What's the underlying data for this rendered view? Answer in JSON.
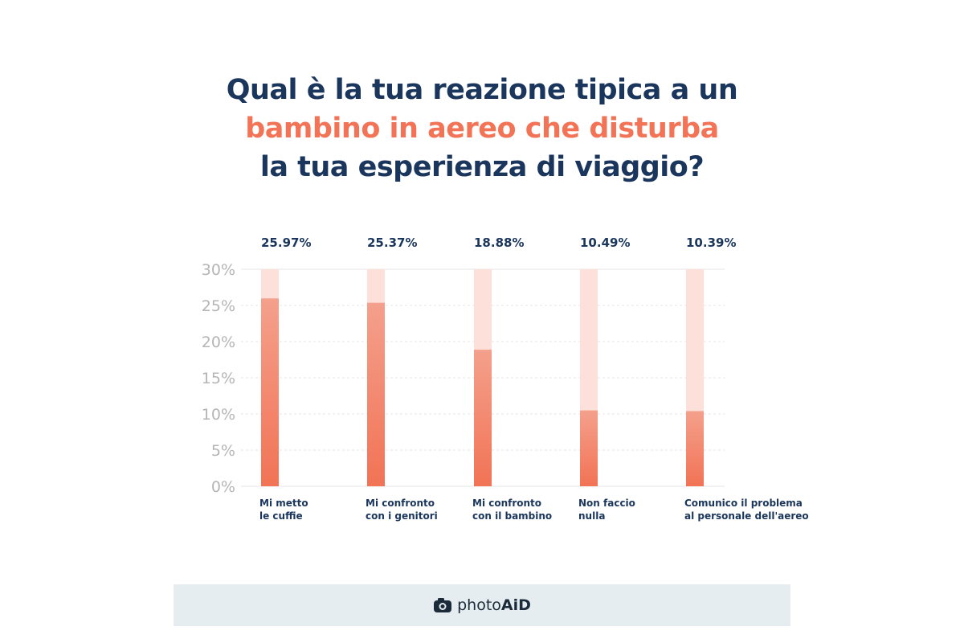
{
  "title": {
    "line1": "Qual è la tua reazione tipica a un",
    "line2": "bambino in aereo che disturba",
    "line3": "la tua esperienza di viaggio?"
  },
  "chart_data": {
    "type": "bar",
    "categories": [
      [
        "Mi metto",
        "le cuffie"
      ],
      [
        "Mi confronto",
        "con i genitori"
      ],
      [
        "Mi confronto",
        "con il bambino"
      ],
      [
        "Non faccio",
        "nulla"
      ],
      [
        "Comunico il problema",
        "al personale dell'aereo"
      ]
    ],
    "values": [
      25.97,
      25.37,
      18.88,
      10.49,
      10.39
    ],
    "value_labels": [
      "25.97%",
      "25.37%",
      "18.88%",
      "10.49%",
      "10.39%"
    ],
    "yticks": [
      "0%",
      "5%",
      "10%",
      "15%",
      "20%",
      "25%",
      "30%"
    ],
    "ylim": [
      0,
      30
    ],
    "grid": true,
    "colors": {
      "bar": "#f27355",
      "bar_top": "#f4a08c",
      "track": "#fde0da",
      "label": "#1b365d",
      "tick": "#b5b5b5"
    }
  },
  "footer": {
    "brand_prefix": "photo",
    "brand_suffix": "AiD",
    "icon": "camera-icon"
  }
}
